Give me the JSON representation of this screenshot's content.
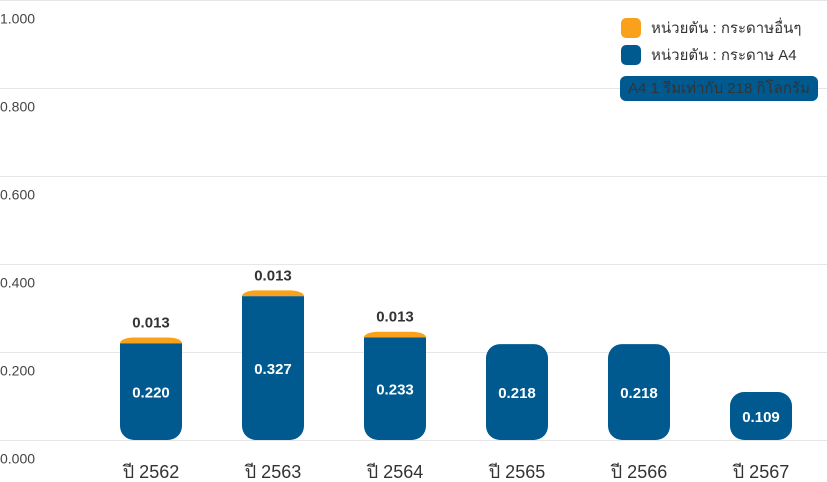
{
  "chart_data": {
    "type": "bar",
    "stacked": true,
    "categories": [
      "ปี 2562",
      "ปี 2563",
      "ปี 2564",
      "ปี 2565",
      "ปี 2566",
      "ปี 2567"
    ],
    "series": [
      {
        "name": "หน่วยตัน : กระดาษ A4",
        "color": "#005a8f",
        "values": [
          0.22,
          0.327,
          0.233,
          0.218,
          0.218,
          0.109
        ],
        "value_labels": [
          "0.220",
          "0.327",
          "0.233",
          "0.218",
          "0.218",
          "0.109"
        ]
      },
      {
        "name": "หน่วยตัน : กระดาษอื่นๆ",
        "color": "#f9a11b",
        "values": [
          0.013,
          0.013,
          0.013,
          null,
          null,
          null
        ],
        "value_labels": [
          "0.013",
          "0.013",
          "0.013",
          null,
          null,
          null
        ]
      }
    ],
    "annotation": "A4 1 รีมเท่ากับ 218 กิโลกรัม",
    "ylim": [
      0,
      1
    ],
    "yticks": [
      {
        "value": 0,
        "label": "0.000"
      },
      {
        "value": 0.2,
        "label": "0.200"
      },
      {
        "value": 0.4,
        "label": "0.400"
      },
      {
        "value": 0.6,
        "label": "0.600"
      },
      {
        "value": 0.8,
        "label": "0.800"
      },
      {
        "value": 1,
        "label": "1.000"
      }
    ],
    "grid": true
  }
}
